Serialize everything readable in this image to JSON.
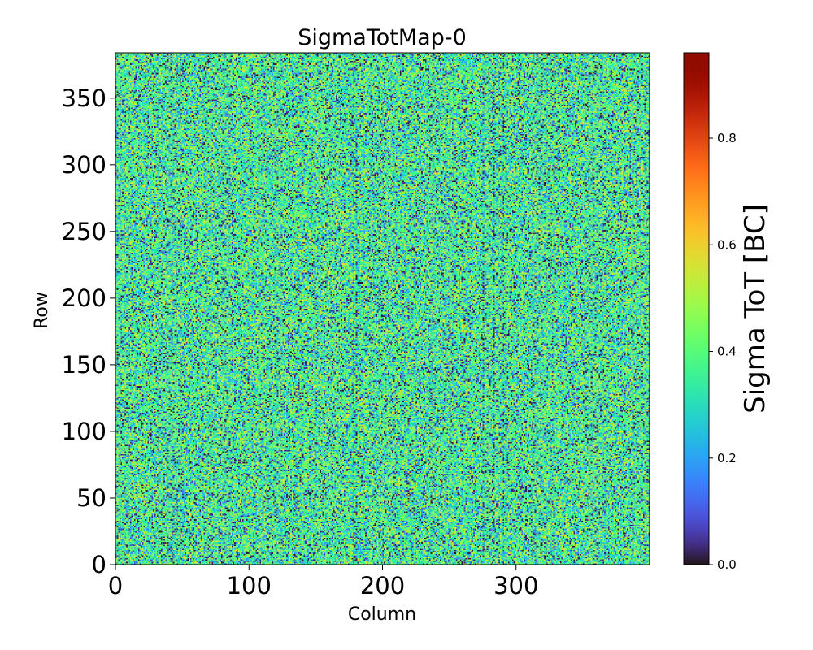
{
  "chart_data": {
    "type": "heatmap",
    "title": "SigmaTotMap-0",
    "xlabel": "Column",
    "ylabel": "Row",
    "xlim": [
      0,
      400
    ],
    "ylim": [
      0,
      384
    ],
    "x_ticks": [
      0,
      100,
      200,
      300
    ],
    "x_tick_labels": [
      "0",
      "100",
      "200",
      "300"
    ],
    "y_ticks": [
      0,
      50,
      100,
      150,
      200,
      250,
      300,
      350
    ],
    "y_tick_labels": [
      "0",
      "50",
      "100",
      "150",
      "200",
      "250",
      "300",
      "350"
    ],
    "grid": false,
    "colormap": "turbo",
    "colorbar": {
      "label": "Sigma ToT [BC]",
      "range": [
        0.0,
        0.96
      ],
      "ticks": [
        0.0,
        0.2,
        0.4,
        0.6,
        0.8
      ],
      "tick_labels": [
        "0.0",
        "0.2",
        "0.4",
        "0.6",
        "0.8"
      ]
    },
    "value_distribution": {
      "typical_value": 0.33,
      "low_value_fraction_note": "dark (near 0.0) pixels scattered throughout",
      "max_common_value": 0.55
    }
  }
}
